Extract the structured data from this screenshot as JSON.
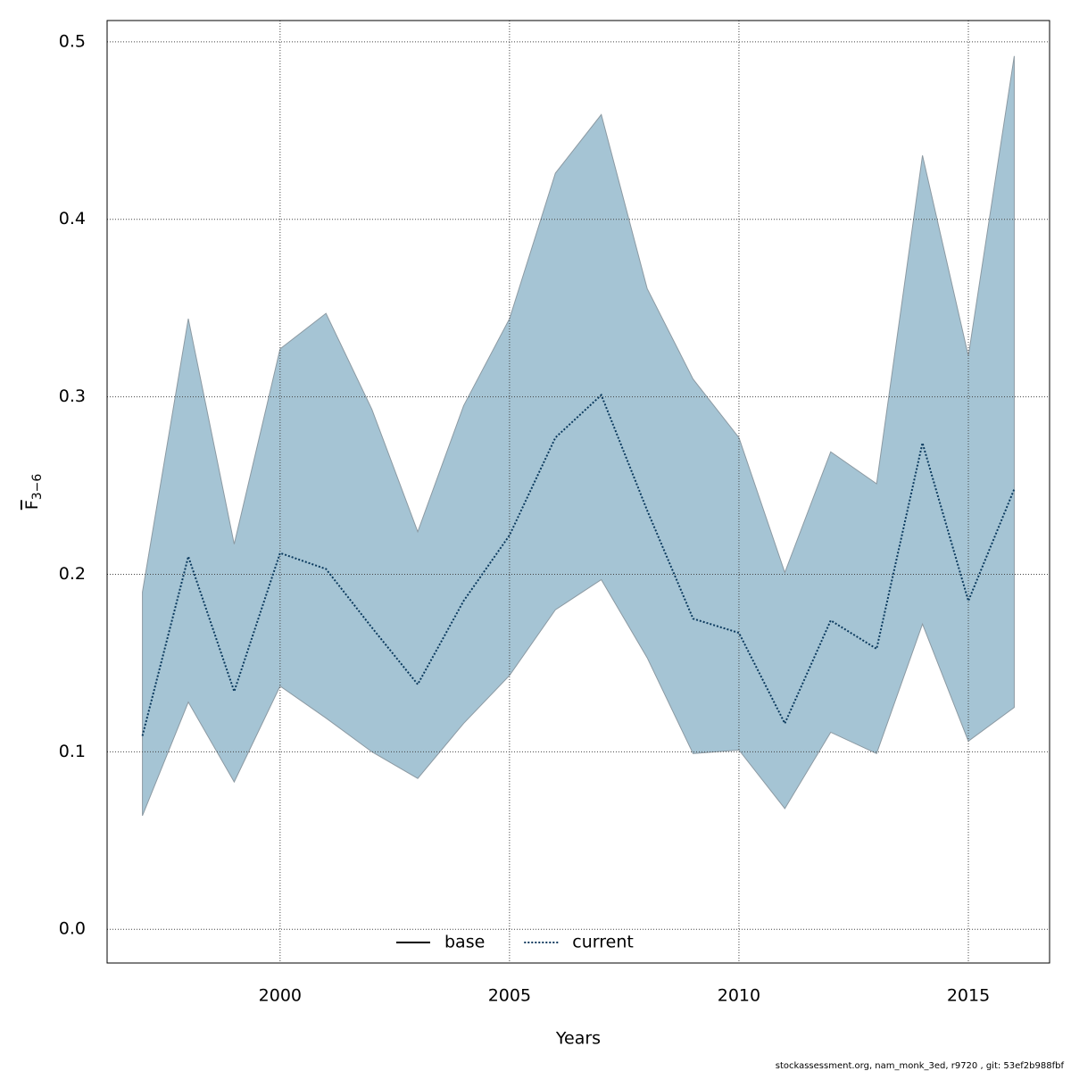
{
  "chart_data": {
    "type": "line",
    "xlabel": "Years",
    "ylabel": "F",
    "ylabel_sub": "3−6",
    "footer": "stockassessment.org, nam_monk_3ed, r9720 , git: 53ef2b988fbf",
    "x": [
      1997,
      1998,
      1999,
      2000,
      2001,
      2002,
      2003,
      2004,
      2005,
      2006,
      2007,
      2008,
      2009,
      2010,
      2011,
      2012,
      2013,
      2014,
      2015,
      2016
    ],
    "series": [
      {
        "name": "current",
        "color": "#0b3a5e",
        "style": "dotted",
        "values": [
          0.109,
          0.21,
          0.134,
          0.212,
          0.203,
          0.17,
          0.138,
          0.185,
          0.222,
          0.277,
          0.301,
          0.236,
          0.175,
          0.167,
          0.116,
          0.174,
          0.158,
          0.274,
          0.185,
          0.248
        ],
        "upper": [
          0.19,
          0.344,
          0.217,
          0.327,
          0.347,
          0.293,
          0.224,
          0.295,
          0.344,
          0.426,
          0.459,
          0.361,
          0.31,
          0.277,
          0.201,
          0.269,
          0.251,
          0.436,
          0.323,
          0.492
        ],
        "lower": [
          0.064,
          0.128,
          0.083,
          0.137,
          0.119,
          0.1,
          0.085,
          0.116,
          0.143,
          0.18,
          0.197,
          0.153,
          0.099,
          0.101,
          0.068,
          0.111,
          0.099,
          0.172,
          0.106,
          0.125
        ],
        "band_color": "#a5c4d4"
      }
    ],
    "legend": [
      {
        "name": "base",
        "color": "#000000",
        "style": "solid"
      },
      {
        "name": "current",
        "color": "#0b3a5e",
        "style": "dotted"
      }
    ],
    "xlim": [
      1996.23,
      2016.77
    ],
    "xticks": [
      2000,
      2005,
      2010,
      2015
    ],
    "ylim": [
      -0.019,
      0.512
    ],
    "yticks": [
      {
        "value": 0,
        "label": "0.0"
      },
      0.1,
      0.2,
      0.3,
      0.4,
      0.5
    ],
    "grid": true
  }
}
